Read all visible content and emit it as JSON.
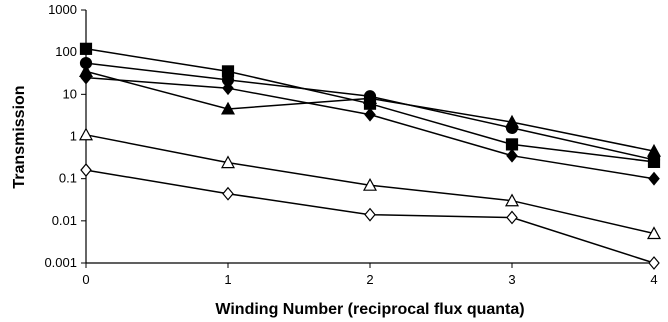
{
  "chart_data": {
    "type": "line",
    "title": "",
    "xlabel": "Winding Number (reciprocal flux quanta)",
    "ylabel": "Transmission",
    "x": [
      0,
      1,
      2,
      3,
      4
    ],
    "x_ticks": [
      "0",
      "1",
      "2",
      "3",
      "4"
    ],
    "xlim": [
      0,
      4
    ],
    "y_scale": "log",
    "ylim": [
      0.001,
      1000
    ],
    "y_ticks": [
      "0.001",
      "0.01",
      "0.1",
      "1",
      "10",
      "100",
      "1000"
    ],
    "y_tick_values": [
      0.001,
      0.01,
      0.1,
      1,
      10,
      100,
      1000
    ],
    "grid": false,
    "legend": "none",
    "series": [
      {
        "marker": "square-filled",
        "values": [
          120,
          35,
          6.0,
          0.65,
          0.25
        ]
      },
      {
        "marker": "circle-filled",
        "values": [
          55,
          22,
          9.0,
          1.6,
          0.28
        ]
      },
      {
        "marker": "triangle-filled",
        "values": [
          35,
          4.5,
          8.0,
          2.2,
          0.45
        ]
      },
      {
        "marker": "diamond-filled",
        "values": [
          25,
          14,
          3.3,
          0.35,
          0.1
        ]
      },
      {
        "marker": "triangle-open",
        "values": [
          1.1,
          0.24,
          0.07,
          0.03,
          0.005
        ]
      },
      {
        "marker": "diamond-open",
        "values": [
          0.16,
          0.044,
          0.014,
          0.012,
          0.001
        ]
      }
    ],
    "colors": {
      "line": "#000000",
      "background": "#ffffff",
      "plot_area": "#ffffff"
    }
  }
}
